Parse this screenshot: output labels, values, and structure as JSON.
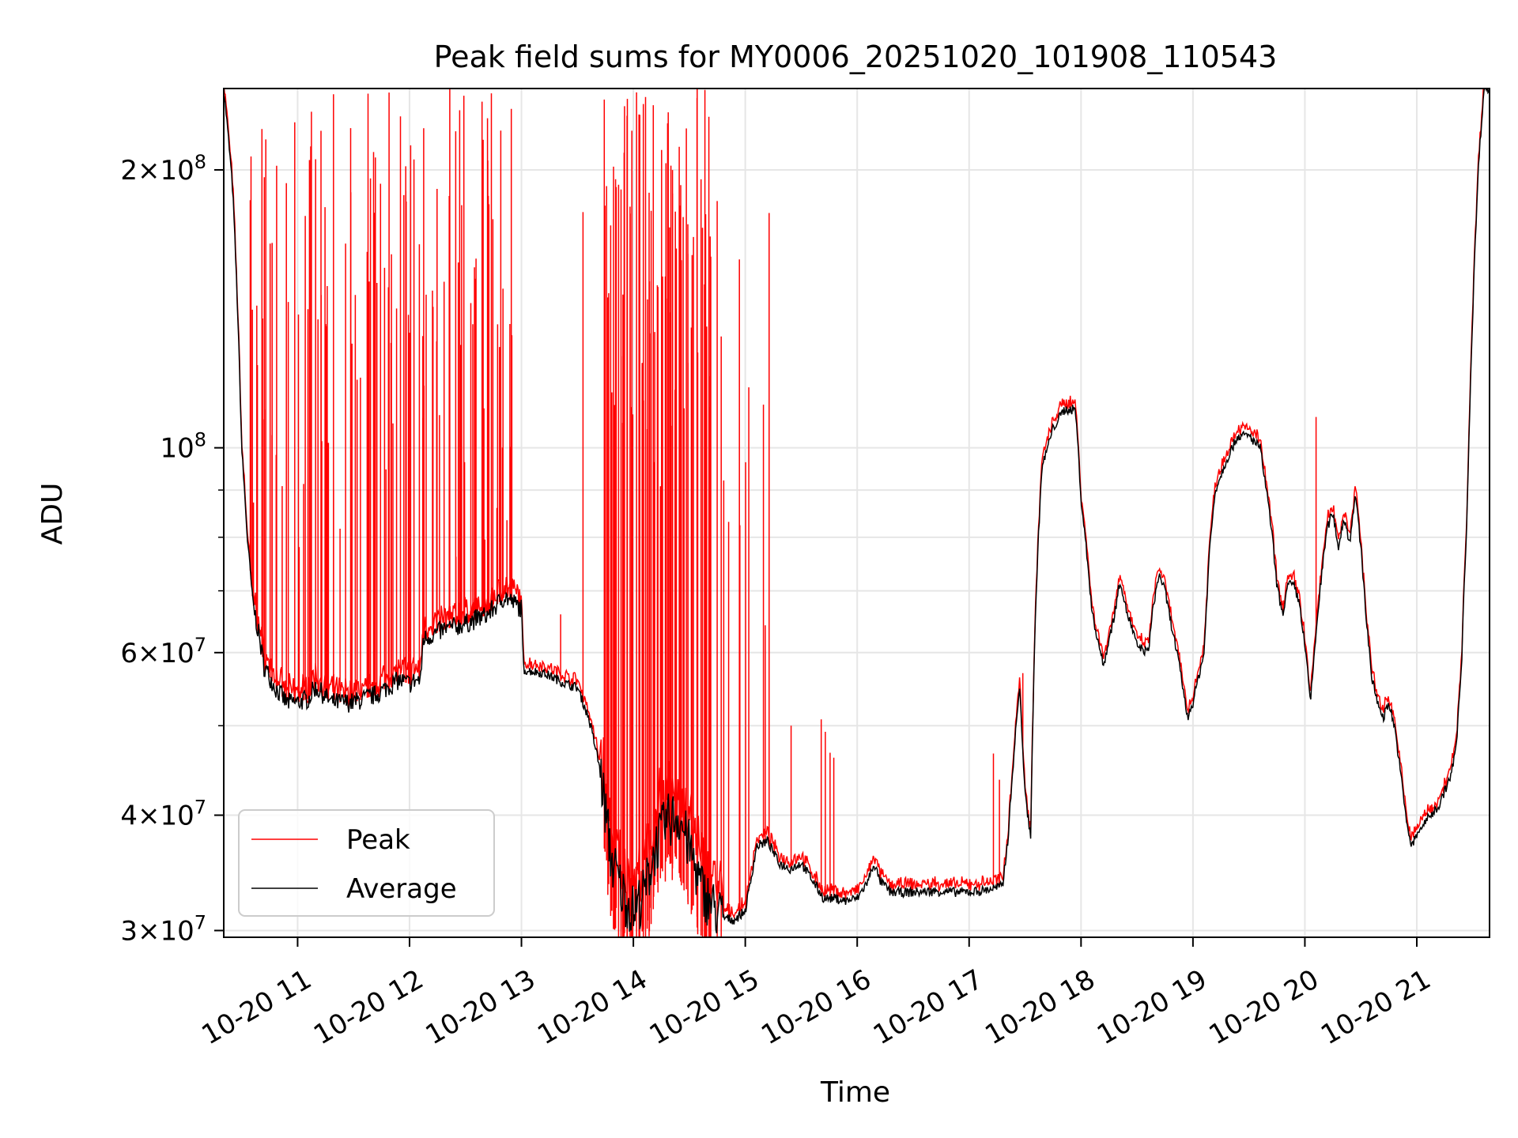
{
  "chart_data": {
    "type": "line",
    "title": "Peak field sums for MY0006_20251020_101908_110543",
    "xlabel": "Time",
    "ylabel": "ADU",
    "yscale": "log",
    "ylim": [
      29500000,
      245000000
    ],
    "xlim_hours": [
      10.34,
      21.65
    ],
    "grid": true,
    "legend_position": "lower-left",
    "x_ticks": [
      {
        "hour": 11,
        "label": "10-20 11"
      },
      {
        "hour": 12,
        "label": "10-20 12"
      },
      {
        "hour": 13,
        "label": "10-20 13"
      },
      {
        "hour": 14,
        "label": "10-20 14"
      },
      {
        "hour": 15,
        "label": "10-20 15"
      },
      {
        "hour": 16,
        "label": "10-20 16"
      },
      {
        "hour": 17,
        "label": "10-20 17"
      },
      {
        "hour": 18,
        "label": "10-20 18"
      },
      {
        "hour": 19,
        "label": "10-20 19"
      },
      {
        "hour": 20,
        "label": "10-20 20"
      },
      {
        "hour": 21,
        "label": "10-20 21"
      }
    ],
    "y_major_ticks": [
      {
        "value": 30000000,
        "mant": "3",
        "exp": "7"
      },
      {
        "value": 40000000,
        "mant": "4",
        "exp": "7"
      },
      {
        "value": 60000000,
        "mant": "6",
        "exp": "7"
      },
      {
        "value": 100000000,
        "mant": "",
        "exp": "8"
      },
      {
        "value": 200000000,
        "mant": "2",
        "exp": "8"
      }
    ],
    "y_minor_grid": [
      50000000,
      70000000,
      80000000,
      90000000
    ],
    "series": [
      {
        "name": "Average",
        "color": "#000000",
        "points": [
          [
            10.34,
            245000000
          ],
          [
            10.42,
            190000000
          ],
          [
            10.5,
            100000000
          ],
          [
            10.55,
            80000000
          ],
          [
            10.6,
            68000000
          ],
          [
            10.65,
            63000000
          ],
          [
            10.7,
            58000000
          ],
          [
            10.8,
            55000000
          ],
          [
            10.9,
            53000000
          ],
          [
            11.0,
            53000000
          ],
          [
            11.1,
            53500000
          ],
          [
            11.15,
            55000000
          ],
          [
            11.2,
            54500000
          ],
          [
            11.3,
            53000000
          ],
          [
            11.5,
            53000000
          ],
          [
            11.6,
            53500000
          ],
          [
            11.7,
            54000000
          ],
          [
            11.8,
            55000000
          ],
          [
            11.9,
            56000000
          ],
          [
            12.0,
            55500000
          ],
          [
            12.05,
            56000000
          ],
          [
            12.1,
            56000000
          ],
          [
            12.12,
            62000000
          ],
          [
            12.3,
            63500000
          ],
          [
            12.5,
            64500000
          ],
          [
            12.7,
            66000000
          ],
          [
            12.85,
            69000000
          ],
          [
            13.0,
            67000000
          ],
          [
            13.02,
            57500000
          ],
          [
            13.2,
            57000000
          ],
          [
            13.4,
            55500000
          ],
          [
            13.5,
            55000000
          ],
          [
            13.6,
            51000000
          ],
          [
            13.7,
            45000000
          ],
          [
            13.8,
            36000000
          ],
          [
            13.9,
            33000000
          ],
          [
            14.0,
            31500000
          ],
          [
            14.1,
            33000000
          ],
          [
            14.2,
            37000000
          ],
          [
            14.3,
            39500000
          ],
          [
            14.4,
            40000000
          ],
          [
            14.5,
            37000000
          ],
          [
            14.6,
            33500000
          ],
          [
            14.7,
            32000000
          ],
          [
            14.8,
            31000000
          ],
          [
            14.9,
            30800000
          ],
          [
            15.0,
            31500000
          ],
          [
            15.05,
            34000000
          ],
          [
            15.1,
            37000000
          ],
          [
            15.2,
            37500000
          ],
          [
            15.3,
            35500000
          ],
          [
            15.4,
            35000000
          ],
          [
            15.5,
            35500000
          ],
          [
            15.6,
            34000000
          ],
          [
            15.7,
            32500000
          ],
          [
            15.8,
            32500000
          ],
          [
            15.9,
            32300000
          ],
          [
            16.0,
            32500000
          ],
          [
            16.1,
            34000000
          ],
          [
            16.15,
            35500000
          ],
          [
            16.2,
            34000000
          ],
          [
            16.3,
            33000000
          ],
          [
            16.5,
            33000000
          ],
          [
            16.7,
            33100000
          ],
          [
            16.9,
            33000000
          ],
          [
            17.1,
            33100000
          ],
          [
            17.3,
            33500000
          ],
          [
            17.35,
            38000000
          ],
          [
            17.45,
            55000000
          ],
          [
            17.5,
            42000000
          ],
          [
            17.55,
            38000000
          ],
          [
            17.6,
            70000000
          ],
          [
            17.65,
            95000000
          ],
          [
            17.75,
            105000000
          ],
          [
            17.85,
            110000000
          ],
          [
            17.95,
            110000000
          ],
          [
            18.0,
            88000000
          ],
          [
            18.1,
            66000000
          ],
          [
            18.2,
            58000000
          ],
          [
            18.3,
            66000000
          ],
          [
            18.35,
            72000000
          ],
          [
            18.4,
            67000000
          ],
          [
            18.5,
            61000000
          ],
          [
            18.6,
            60000000
          ],
          [
            18.65,
            68000000
          ],
          [
            18.7,
            73000000
          ],
          [
            18.75,
            70000000
          ],
          [
            18.8,
            65000000
          ],
          [
            18.9,
            56000000
          ],
          [
            18.95,
            51000000
          ],
          [
            19.0,
            53000000
          ],
          [
            19.1,
            60000000
          ],
          [
            19.15,
            78000000
          ],
          [
            19.2,
            90000000
          ],
          [
            19.3,
            97000000
          ],
          [
            19.4,
            103000000
          ],
          [
            19.5,
            103000000
          ],
          [
            19.6,
            100000000
          ],
          [
            19.7,
            82000000
          ],
          [
            19.75,
            71000000
          ],
          [
            19.8,
            66000000
          ],
          [
            19.85,
            71000000
          ],
          [
            19.9,
            71000000
          ],
          [
            19.95,
            68000000
          ],
          [
            20.0,
            61000000
          ],
          [
            20.05,
            53000000
          ],
          [
            20.1,
            63000000
          ],
          [
            20.15,
            73000000
          ],
          [
            20.2,
            82000000
          ],
          [
            20.25,
            85000000
          ],
          [
            20.3,
            78000000
          ],
          [
            20.35,
            84000000
          ],
          [
            20.4,
            79000000
          ],
          [
            20.45,
            89000000
          ],
          [
            20.5,
            78000000
          ],
          [
            20.55,
            65000000
          ],
          [
            20.6,
            56000000
          ],
          [
            20.65,
            53000000
          ],
          [
            20.7,
            51000000
          ],
          [
            20.75,
            53000000
          ],
          [
            20.8,
            50000000
          ],
          [
            20.85,
            45000000
          ],
          [
            20.9,
            40000000
          ],
          [
            20.95,
            37000000
          ],
          [
            21.0,
            38000000
          ],
          [
            21.05,
            39000000
          ],
          [
            21.2,
            41000000
          ],
          [
            21.3,
            44000000
          ],
          [
            21.35,
            47000000
          ],
          [
            21.4,
            58000000
          ],
          [
            21.45,
            85000000
          ],
          [
            21.5,
            140000000
          ],
          [
            21.55,
            200000000
          ],
          [
            21.6,
            245000000
          ],
          [
            21.65,
            245000000
          ]
        ]
      },
      {
        "name": "Peak",
        "color": "#ff0000",
        "spike_ranges": [
          {
            "from": 10.55,
            "to": 12.95,
            "count": 130,
            "min": 75000000,
            "max": 245000000
          },
          {
            "from": 13.72,
            "to": 14.75,
            "count": 100,
            "min": 90000000,
            "max": 245000000
          },
          {
            "from": 14.75,
            "to": 15.22,
            "count": 10,
            "min": 60000000,
            "max": 190000000
          },
          {
            "from": 15.4,
            "to": 15.85,
            "count": 5,
            "min": 42000000,
            "max": 56000000
          },
          {
            "from": 17.1,
            "to": 17.45,
            "count": 2,
            "min": 43000000,
            "max": 57000000
          }
        ],
        "spikes": [
          [
            13.55,
            180000000
          ],
          [
            13.35,
            66000000
          ],
          [
            20.1,
            108000000
          ],
          [
            17.48,
            57000000
          ]
        ]
      }
    ]
  }
}
